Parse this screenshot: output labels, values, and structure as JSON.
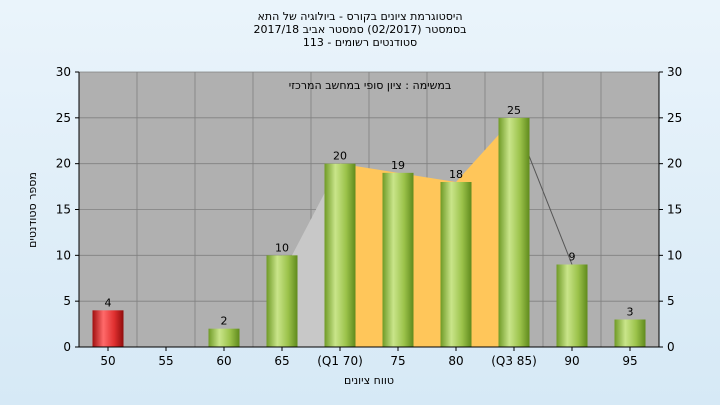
{
  "header": {
    "line1": "היסטוגרמת ציונים בקורס - ביולוגיה של התא",
    "line2": "בסמסטר  (02/2017)  סמסטר אביב 2017/18",
    "line3": "סטודנטים רשומים - 113"
  },
  "colors": {
    "plot_bg": "#b0b0b0",
    "bar_green": "#9bc24a",
    "bar_red": "#e03030",
    "band": "#ffc65a"
  },
  "chart_data": {
    "type": "bar",
    "title": "",
    "annotation": "במשימה : ציון סופי במחשב המרכזי",
    "xlabel": "טווח ציונים",
    "ylabel": "מספר סטודנטים",
    "categories": [
      "50",
      "55",
      "60",
      "65",
      "(Q1 70)",
      "75",
      "80",
      "(Q3 85)",
      "90",
      "95"
    ],
    "values": [
      4,
      0,
      2,
      10,
      20,
      19,
      18,
      25,
      9,
      3
    ],
    "data_labels": [
      "4",
      "",
      "2",
      "10",
      "20",
      "19",
      "18",
      "25",
      "9",
      "3"
    ],
    "bar_colors": [
      "red",
      null,
      "green",
      "green",
      "green",
      "green",
      "green",
      "green",
      "green",
      "green"
    ],
    "ylim": [
      0,
      30
    ],
    "yticks": [
      0,
      5,
      10,
      15,
      20,
      25,
      30
    ],
    "y2ticks": [
      0,
      5,
      10,
      15,
      20,
      25,
      30
    ],
    "grid": true,
    "legend": "none",
    "band_range": [
      "(Q1 70)",
      "(Q3 85)"
    ]
  }
}
